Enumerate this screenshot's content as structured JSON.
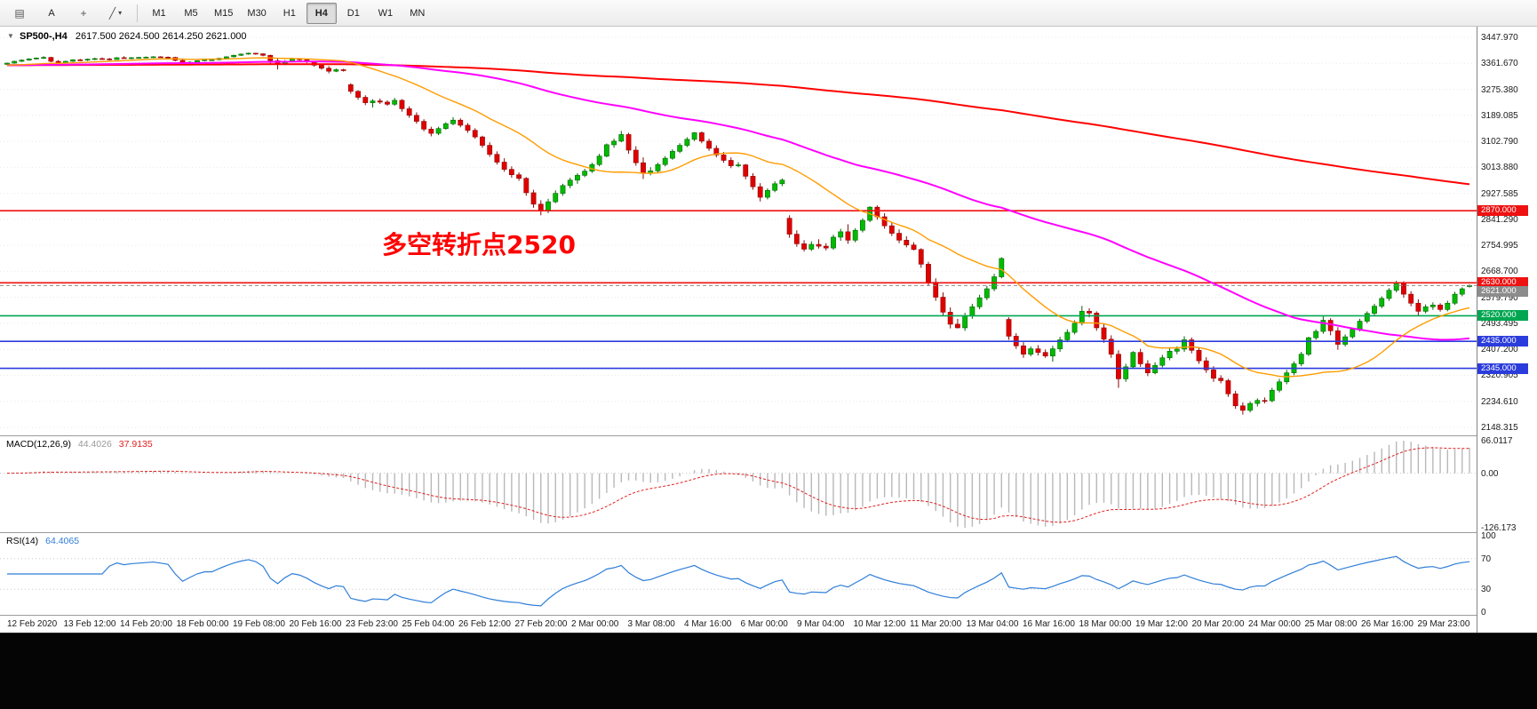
{
  "toolbar": {
    "icons": {
      "chart_menu": "▤",
      "text_tool": "A",
      "crosshair": "+",
      "draw_tool": "╱",
      "caret_down": "▾"
    },
    "timeframes": [
      "M1",
      "M5",
      "M15",
      "M30",
      "H1",
      "H4",
      "D1",
      "W1",
      "MN"
    ],
    "active_timeframe": "H4"
  },
  "chart": {
    "collapse_icon": "▼",
    "symbol_title": "SP500-,H4",
    "ohlc": "2617.500 2624.500 2614.250 2621.000",
    "annotation": "多空转折点2520",
    "annotation_color": "#ff0000",
    "y_axis_labels": [
      "3447.970",
      "3361.670",
      "3275.380",
      "3189.085",
      "3102.790",
      "3013.880",
      "2927.585",
      "2841.290",
      "2754.995",
      "2668.700",
      "2579.790",
      "2493.495",
      "2407.200",
      "2320.905",
      "2234.610",
      "2148.315"
    ],
    "time_labels": [
      "12 Feb 2020",
      "13 Feb 12:00",
      "14 Feb 20:00",
      "18 Feb 00:00",
      "19 Feb 08:00",
      "20 Feb 16:00",
      "23 Feb 23:00",
      "25 Feb 04:00",
      "26 Feb 12:00",
      "27 Feb 20:00",
      "2 Mar 00:00",
      "3 Mar 08:00",
      "4 Mar 16:00",
      "6 Mar 00:00",
      "9 Mar 04:00",
      "10 Mar 12:00",
      "11 Mar 20:00",
      "13 Mar 04:00",
      "16 Mar 16:00",
      "18 Mar 00:00",
      "19 Mar 12:00",
      "20 Mar 20:00",
      "24 Mar 00:00",
      "25 Mar 08:00",
      "26 Mar 16:00",
      "29 Mar 23:00"
    ],
    "price_lines": [
      {
        "label": "2870.000",
        "price": 2870.0,
        "color": "#ee1111"
      },
      {
        "label": "2630.000",
        "price": 2630.0,
        "color": "#ee1111"
      },
      {
        "label": "2520.000",
        "price": 2520.0,
        "color": "#00a651"
      },
      {
        "label": "2435.000",
        "price": 2435.0,
        "color": "#2b3cdc"
      },
      {
        "label": "2345.000",
        "price": 2345.0,
        "color": "#2b3cdc"
      }
    ],
    "current_price": {
      "label": "2621.000",
      "price": 2621.0,
      "color": "#8c8c8c"
    }
  },
  "macd": {
    "label": "MACD(12,26,9)",
    "value_main": "44.4026",
    "value_signal": "37.9135",
    "axis_labels": [
      "66.0117",
      "0.00",
      "-126.173"
    ],
    "histogram_color": "#b8b8b8",
    "signal_color": "#e02020"
  },
  "rsi": {
    "label": "RSI(14)",
    "value": "64.4065",
    "axis_labels": [
      "100",
      "70",
      "30",
      "0"
    ],
    "levels": [
      70,
      30
    ],
    "line_color": "#2f7ed8"
  },
  "chart_data": {
    "type": "candlestick",
    "symbol": "SP500-",
    "timeframe": "H4",
    "y_range": [
      2148.315,
      3447.97
    ],
    "x_start": "12 Feb 2020",
    "x_end": "30 Mar 2020",
    "up_color": "#00bb00",
    "up_border": "#006600",
    "down_color": "#e00000",
    "down_border": "#8e0606",
    "ma_seed": 3355,
    "moving_averages": [
      {
        "period": 240,
        "color": "#ff0000",
        "width": 2
      },
      {
        "period": 70,
        "color": "#ff00ff",
        "width": 2
      },
      {
        "period": 20,
        "color": "#ff9c00",
        "width": 1.4
      }
    ],
    "candles": [
      [
        3358,
        3364,
        3355,
        3362
      ],
      [
        3362,
        3370,
        3360,
        3368
      ],
      [
        3368,
        3374,
        3366,
        3372
      ],
      [
        3372,
        3378,
        3370,
        3376
      ],
      [
        3376,
        3381,
        3374,
        3379
      ],
      [
        3379,
        3385,
        3376,
        3381
      ],
      [
        3381,
        3383,
        3365,
        3368
      ],
      [
        3368,
        3372,
        3358,
        3362
      ],
      [
        3362,
        3370,
        3360,
        3368
      ],
      [
        3368,
        3375,
        3366,
        3373
      ],
      [
        3373,
        3376,
        3369,
        3372
      ],
      [
        3372,
        3377,
        3369,
        3375
      ],
      [
        3375,
        3380,
        3372,
        3377
      ],
      [
        3377,
        3381,
        3374,
        3376
      ],
      [
        3376,
        3379,
        3371,
        3374
      ],
      [
        3374,
        3382,
        3373,
        3380
      ],
      [
        3380,
        3385,
        3377,
        3378
      ],
      [
        3378,
        3382,
        3375,
        3380
      ],
      [
        3380,
        3383,
        3378,
        3381
      ],
      [
        3381,
        3384,
        3379,
        3382
      ],
      [
        3382,
        3385,
        3380,
        3383
      ],
      [
        3383,
        3385,
        3381,
        3382
      ],
      [
        3382,
        3384,
        3379,
        3381
      ],
      [
        3381,
        3383,
        3368,
        3371
      ],
      [
        3371,
        3374,
        3355,
        3360
      ],
      [
        3360,
        3368,
        3358,
        3365
      ],
      [
        3365,
        3372,
        3363,
        3370
      ],
      [
        3370,
        3375,
        3368,
        3373
      ],
      [
        3373,
        3376,
        3370,
        3373
      ],
      [
        3373,
        3380,
        3371,
        3378
      ],
      [
        3378,
        3385,
        3376,
        3383
      ],
      [
        3383,
        3390,
        3381,
        3388
      ],
      [
        3388,
        3394,
        3386,
        3392
      ],
      [
        3392,
        3397,
        3390,
        3395
      ],
      [
        3395,
        3396,
        3390,
        3393
      ],
      [
        3393,
        3395,
        3385,
        3388
      ],
      [
        3388,
        3390,
        3360,
        3370
      ],
      [
        3370,
        3378,
        3341,
        3358
      ],
      [
        3358,
        3372,
        3355,
        3368
      ],
      [
        3368,
        3380,
        3366,
        3376
      ],
      [
        3376,
        3379,
        3370,
        3373
      ],
      [
        3373,
        3375,
        3362,
        3366
      ],
      [
        3366,
        3368,
        3350,
        3355
      ],
      [
        3355,
        3360,
        3340,
        3345
      ],
      [
        3345,
        3352,
        3328,
        3335
      ],
      [
        3335,
        3344,
        3332,
        3340
      ],
      [
        3340,
        3343,
        3334,
        3337
      ],
      [
        3290,
        3295,
        3260,
        3268
      ],
      [
        3268,
        3272,
        3240,
        3248
      ],
      [
        3248,
        3255,
        3222,
        3230
      ],
      [
        3230,
        3242,
        3214,
        3236
      ],
      [
        3236,
        3244,
        3226,
        3232
      ],
      [
        3232,
        3238,
        3220,
        3225
      ],
      [
        3225,
        3246,
        3220,
        3238
      ],
      [
        3238,
        3242,
        3200,
        3210
      ],
      [
        3210,
        3218,
        3180,
        3188
      ],
      [
        3188,
        3198,
        3160,
        3168
      ],
      [
        3168,
        3175,
        3135,
        3142
      ],
      [
        3142,
        3150,
        3118,
        3128
      ],
      [
        3128,
        3150,
        3122,
        3144
      ],
      [
        3144,
        3165,
        3140,
        3160
      ],
      [
        3160,
        3182,
        3155,
        3172
      ],
      [
        3172,
        3178,
        3148,
        3155
      ],
      [
        3155,
        3162,
        3130,
        3138
      ],
      [
        3138,
        3145,
        3110,
        3116
      ],
      [
        3116,
        3120,
        3080,
        3088
      ],
      [
        3088,
        3098,
        3050,
        3058
      ],
      [
        3058,
        3068,
        3024,
        3032
      ],
      [
        3032,
        3045,
        3000,
        3008
      ],
      [
        3008,
        3018,
        2980,
        2990
      ],
      [
        2990,
        2998,
        2970,
        2978
      ],
      [
        2978,
        2982,
        2920,
        2930
      ],
      [
        2930,
        2940,
        2880,
        2892
      ],
      [
        2892,
        2905,
        2855,
        2870
      ],
      [
        2870,
        2910,
        2862,
        2900
      ],
      [
        2900,
        2938,
        2895,
        2928
      ],
      [
        2928,
        2960,
        2920,
        2954
      ],
      [
        2954,
        2980,
        2945,
        2972
      ],
      [
        2972,
        2995,
        2960,
        2988
      ],
      [
        2988,
        3010,
        2982,
        3002
      ],
      [
        3002,
        3030,
        2996,
        3024
      ],
      [
        3024,
        3060,
        3018,
        3052
      ],
      [
        3052,
        3094,
        3048,
        3090
      ],
      [
        3090,
        3110,
        3080,
        3102
      ],
      [
        3102,
        3136,
        3098,
        3124
      ],
      [
        3124,
        3130,
        3060,
        3072
      ],
      [
        3072,
        3085,
        3020,
        3030
      ],
      [
        3030,
        3048,
        2976,
        2995
      ],
      [
        2995,
        3015,
        2988,
        3003
      ],
      [
        3003,
        3030,
        2998,
        3024
      ],
      [
        3024,
        3052,
        3018,
        3045
      ],
      [
        3045,
        3075,
        3040,
        3068
      ],
      [
        3068,
        3095,
        3062,
        3088
      ],
      [
        3088,
        3115,
        3082,
        3108
      ],
      [
        3108,
        3132,
        3102,
        3130
      ],
      [
        3130,
        3134,
        3095,
        3102
      ],
      [
        3102,
        3110,
        3070,
        3078
      ],
      [
        3078,
        3088,
        3048,
        3056
      ],
      [
        3056,
        3066,
        3030,
        3038
      ],
      [
        3038,
        3048,
        3012,
        3020
      ],
      [
        3020,
        3032,
        3015,
        3023
      ],
      [
        3023,
        3026,
        2975,
        2985
      ],
      [
        2985,
        2995,
        2940,
        2950
      ],
      [
        2950,
        2962,
        2901,
        2915
      ],
      [
        2915,
        2945,
        2908,
        2938
      ],
      [
        2938,
        2968,
        2932,
        2960
      ],
      [
        2960,
        2978,
        2952,
        2972
      ],
      [
        2845,
        2855,
        2780,
        2792
      ],
      [
        2792,
        2805,
        2750,
        2760
      ],
      [
        2760,
        2772,
        2734,
        2742
      ],
      [
        2742,
        2768,
        2736,
        2758
      ],
      [
        2758,
        2775,
        2744,
        2752
      ],
      [
        2752,
        2762,
        2738,
        2746
      ],
      [
        2746,
        2790,
        2740,
        2782
      ],
      [
        2782,
        2810,
        2770,
        2800
      ],
      [
        2800,
        2825,
        2760,
        2772
      ],
      [
        2772,
        2812,
        2765,
        2805
      ],
      [
        2805,
        2845,
        2798,
        2838
      ],
      [
        2838,
        2885,
        2832,
        2882
      ],
      [
        2882,
        2888,
        2840,
        2850
      ],
      [
        2850,
        2862,
        2810,
        2820
      ],
      [
        2820,
        2832,
        2786,
        2795
      ],
      [
        2795,
        2808,
        2762,
        2772
      ],
      [
        2772,
        2785,
        2748,
        2756
      ],
      [
        2756,
        2765,
        2738,
        2741
      ],
      [
        2741,
        2745,
        2680,
        2692
      ],
      [
        2692,
        2700,
        2620,
        2632
      ],
      [
        2632,
        2645,
        2570,
        2582
      ],
      [
        2582,
        2598,
        2520,
        2532
      ],
      [
        2532,
        2548,
        2478,
        2492
      ],
      [
        2492,
        2510,
        2478,
        2480
      ],
      [
        2480,
        2530,
        2470,
        2520
      ],
      [
        2520,
        2560,
        2510,
        2550
      ],
      [
        2550,
        2590,
        2542,
        2580
      ],
      [
        2580,
        2620,
        2572,
        2610
      ],
      [
        2610,
        2660,
        2602,
        2650
      ],
      [
        2650,
        2715,
        2645,
        2711
      ],
      [
        2508,
        2515,
        2440,
        2452
      ],
      [
        2452,
        2462,
        2410,
        2420
      ],
      [
        2420,
        2432,
        2380,
        2392
      ],
      [
        2392,
        2418,
        2385,
        2410
      ],
      [
        2410,
        2422,
        2388,
        2398
      ],
      [
        2398,
        2408,
        2380,
        2386
      ],
      [
        2386,
        2420,
        2367,
        2410
      ],
      [
        2410,
        2450,
        2400,
        2440
      ],
      [
        2440,
        2475,
        2432,
        2465
      ],
      [
        2465,
        2505,
        2458,
        2495
      ],
      [
        2495,
        2553,
        2488,
        2535
      ],
      [
        2535,
        2545,
        2515,
        2529
      ],
      [
        2529,
        2535,
        2470,
        2480
      ],
      [
        2480,
        2492,
        2430,
        2442
      ],
      [
        2442,
        2455,
        2380,
        2392
      ],
      [
        2392,
        2405,
        2280,
        2310
      ],
      [
        2310,
        2360,
        2300,
        2350
      ],
      [
        2350,
        2402,
        2344,
        2398
      ],
      [
        2398,
        2410,
        2350,
        2360
      ],
      [
        2360,
        2372,
        2319,
        2330
      ],
      [
        2330,
        2365,
        2325,
        2355
      ],
      [
        2355,
        2390,
        2348,
        2380
      ],
      [
        2380,
        2412,
        2372,
        2402
      ],
      [
        2402,
        2418,
        2392,
        2409
      ],
      [
        2409,
        2452,
        2400,
        2440
      ],
      [
        2440,
        2448,
        2395,
        2405
      ],
      [
        2405,
        2415,
        2360,
        2370
      ],
      [
        2370,
        2382,
        2330,
        2340
      ],
      [
        2340,
        2352,
        2300,
        2312
      ],
      [
        2312,
        2322,
        2295,
        2304
      ],
      [
        2304,
        2310,
        2250,
        2260
      ],
      [
        2260,
        2270,
        2210,
        2220
      ],
      [
        2220,
        2232,
        2191,
        2205
      ],
      [
        2205,
        2235,
        2198,
        2228
      ],
      [
        2228,
        2245,
        2218,
        2238
      ],
      [
        2238,
        2248,
        2228,
        2237
      ],
      [
        2237,
        2280,
        2232,
        2272
      ],
      [
        2272,
        2310,
        2265,
        2300
      ],
      [
        2300,
        2340,
        2292,
        2330
      ],
      [
        2330,
        2368,
        2322,
        2360
      ],
      [
        2360,
        2400,
        2352,
        2392
      ],
      [
        2392,
        2450,
        2386,
        2447
      ],
      [
        2447,
        2475,
        2440,
        2468
      ],
      [
        2468,
        2520,
        2460,
        2505
      ],
      [
        2505,
        2512,
        2455,
        2470
      ],
      [
        2470,
        2482,
        2407,
        2425
      ],
      [
        2425,
        2458,
        2418,
        2450
      ],
      [
        2450,
        2480,
        2444,
        2475
      ],
      [
        2475,
        2510,
        2468,
        2502
      ],
      [
        2502,
        2535,
        2495,
        2528
      ],
      [
        2528,
        2560,
        2520,
        2552
      ],
      [
        2552,
        2585,
        2545,
        2578
      ],
      [
        2578,
        2612,
        2570,
        2605
      ],
      [
        2605,
        2637,
        2598,
        2630
      ],
      [
        2630,
        2635,
        2580,
        2592
      ],
      [
        2592,
        2602,
        2552,
        2562
      ],
      [
        2562,
        2575,
        2520,
        2535
      ],
      [
        2535,
        2558,
        2528,
        2550
      ],
      [
        2550,
        2565,
        2540,
        2556
      ],
      [
        2556,
        2562,
        2534,
        2541
      ],
      [
        2541,
        2570,
        2535,
        2562
      ],
      [
        2562,
        2600,
        2556,
        2592
      ],
      [
        2592,
        2615,
        2585,
        2610
      ],
      [
        2617.5,
        2624.5,
        2614.25,
        2621
      ]
    ]
  }
}
